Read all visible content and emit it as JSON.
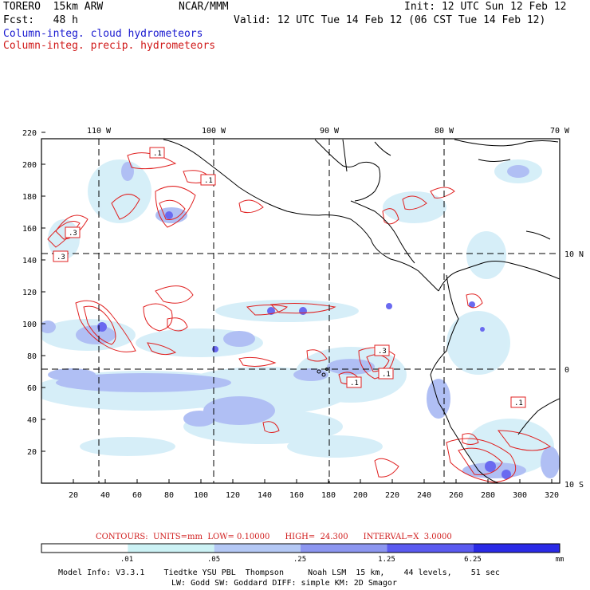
{
  "header": {
    "model": "TORERO  15km ARW",
    "center": "NCAR/MMM",
    "init": "Init: 12 UTC Sun 12 Feb 12",
    "fcst": "Fcst:   48 h",
    "valid": "Valid: 12 UTC Tue 14 Feb 12 (06 CST Tue 14 Feb 12)",
    "field_cloud": "Column-integ. cloud hydrometeors",
    "field_precip": "Column-integ. precip. hydrometeors"
  },
  "colors": {
    "cloud_label": "#1a1ad0",
    "precip_label": "#d01a1a",
    "contour": "#e02020",
    "coast": "#000000"
  },
  "map": {
    "lon_labels": [
      "110 W",
      "100 W",
      "90 W",
      "80 W",
      "70 W"
    ],
    "lat_labels": [
      "10 N",
      "0",
      "10 S"
    ],
    "x_ticks": [
      "20",
      "40",
      "60",
      "80",
      "100",
      "120",
      "140",
      "160",
      "180",
      "200",
      "220",
      "240",
      "260",
      "280",
      "300",
      "320"
    ],
    "y_ticks": [
      "20",
      "40",
      "60",
      "80",
      "100",
      "120",
      "140",
      "160",
      "180",
      "200",
      "220"
    ],
    "contour_labels": [
      ".1",
      ".1",
      ".3",
      ".3",
      ".3",
      ".1",
      ".1",
      ".1"
    ]
  },
  "contours_info": {
    "text": "CONTOURS:  UNITS=mm  LOW= 0.10000      HIGH=  24.300      INTERVAL=X  3.0000"
  },
  "colorbar": {
    "labels": [
      ".01",
      ".05",
      ".25",
      "1.25",
      "6.25"
    ],
    "unit": "mm",
    "colors": [
      "#ffffff",
      "#ccf2f5",
      "#b4c8f5",
      "#8c96f0",
      "#5a5af0",
      "#2a2ae6"
    ]
  },
  "model_info": {
    "line1": "Model Info: V3.3.1    Tiedtke YSU PBL  Thompson     Noah LSM  15 km,    44 levels,    51 sec",
    "line2": "LW: Godd SW: Goddard DIFF: simple KM: 2D Smagor"
  }
}
